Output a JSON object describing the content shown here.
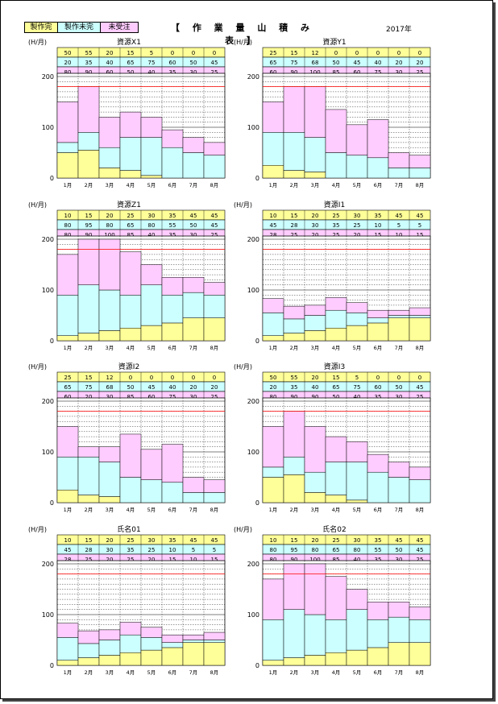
{
  "header": {
    "title": "【 作 業 量 山 積 み 表 】",
    "year": "2017年",
    "legend": [
      {
        "label": "製作完",
        "color": "#ffff99"
      },
      {
        "label": "製作未完",
        "color": "#ccffff"
      },
      {
        "label": "未受注",
        "color": "#ffccff"
      }
    ]
  },
  "colors": {
    "done": "#ffff99",
    "undone": "#ccffff",
    "unordered": "#ffccff",
    "limit": "#ff0000"
  },
  "chart_data": [
    {
      "type": "bar",
      "stacked": true,
      "title": "資源X1",
      "ylabel": "(H/月)",
      "ylim": [
        0,
        200
      ],
      "yticks": [
        0,
        100,
        200
      ],
      "limit_line": 180,
      "categories": [
        "1月",
        "2月",
        "3月",
        "4月",
        "5月",
        "6月",
        "7月",
        "8月"
      ],
      "series": [
        {
          "name": "製作完",
          "values": [
            50,
            55,
            20,
            15,
            5,
            0,
            0,
            0
          ]
        },
        {
          "name": "製作未完",
          "values": [
            20,
            35,
            40,
            65,
            75,
            60,
            50,
            45
          ]
        },
        {
          "name": "未受注",
          "values": [
            80,
            90,
            60,
            50,
            40,
            35,
            30,
            25
          ]
        }
      ]
    },
    {
      "type": "bar",
      "stacked": true,
      "title": "資源Y1",
      "ylabel": "(H/月)",
      "ylim": [
        0,
        200
      ],
      "yticks": [
        0,
        100,
        200
      ],
      "limit_line": 180,
      "categories": [
        "1月",
        "2月",
        "3月",
        "4月",
        "5月",
        "6月",
        "7月",
        "8月"
      ],
      "series": [
        {
          "name": "製作完",
          "values": [
            25,
            15,
            12,
            0,
            0,
            0,
            0,
            0
          ]
        },
        {
          "name": "製作未完",
          "values": [
            65,
            75,
            68,
            50,
            45,
            40,
            20,
            20
          ]
        },
        {
          "name": "未受注",
          "values": [
            60,
            90,
            100,
            85,
            60,
            75,
            30,
            25
          ]
        }
      ]
    },
    {
      "type": "bar",
      "stacked": true,
      "title": "資源Z1",
      "ylabel": "(H/月)",
      "ylim": [
        0,
        200
      ],
      "yticks": [
        0,
        100,
        200
      ],
      "limit_line": 180,
      "categories": [
        "1月",
        "2月",
        "3月",
        "4月",
        "5月",
        "6月",
        "7月",
        "8月"
      ],
      "series": [
        {
          "name": "製作完",
          "values": [
            10,
            15,
            20,
            25,
            30,
            35,
            45,
            45
          ]
        },
        {
          "name": "製作未完",
          "values": [
            80,
            95,
            80,
            65,
            80,
            55,
            50,
            45
          ]
        },
        {
          "name": "未受注",
          "values": [
            80,
            90,
            100,
            85,
            40,
            35,
            30,
            25
          ]
        }
      ]
    },
    {
      "type": "bar",
      "stacked": true,
      "title": "資源I1",
      "ylabel": "(H/月)",
      "ylim": [
        0,
        200
      ],
      "yticks": [
        0,
        100,
        200
      ],
      "limit_line": 180,
      "categories": [
        "1月",
        "2月",
        "3月",
        "4月",
        "5月",
        "6月",
        "7月",
        "8月"
      ],
      "series": [
        {
          "name": "製作完",
          "values": [
            10,
            15,
            20,
            25,
            30,
            35,
            45,
            45
          ]
        },
        {
          "name": "製作未完",
          "values": [
            45,
            28,
            30,
            35,
            25,
            10,
            5,
            5
          ]
        },
        {
          "name": "未受注",
          "values": [
            28,
            25,
            20,
            25,
            20,
            15,
            10,
            15
          ]
        }
      ]
    },
    {
      "type": "bar",
      "stacked": true,
      "title": "資源I2",
      "ylabel": "(H/月)",
      "ylim": [
        0,
        200
      ],
      "yticks": [
        0,
        100,
        200
      ],
      "limit_line": 180,
      "categories": [
        "1月",
        "2月",
        "3月",
        "4月",
        "5月",
        "6月",
        "7月",
        "8月"
      ],
      "series": [
        {
          "name": "製作完",
          "values": [
            25,
            15,
            12,
            0,
            0,
            0,
            0,
            0
          ]
        },
        {
          "name": "製作未完",
          "values": [
            65,
            75,
            68,
            50,
            45,
            40,
            20,
            20
          ]
        },
        {
          "name": "未受注",
          "values": [
            60,
            20,
            30,
            85,
            60,
            75,
            30,
            25
          ]
        }
      ]
    },
    {
      "type": "bar",
      "stacked": true,
      "title": "資源I3",
      "ylabel": "(H/月)",
      "ylim": [
        0,
        200
      ],
      "yticks": [
        0,
        100,
        200
      ],
      "limit_line": 180,
      "categories": [
        "1月",
        "2月",
        "3月",
        "4月",
        "5月",
        "6月",
        "7月",
        "8月"
      ],
      "series": [
        {
          "name": "製作完",
          "values": [
            50,
            55,
            20,
            15,
            5,
            0,
            0,
            0
          ]
        },
        {
          "name": "製作未完",
          "values": [
            20,
            35,
            40,
            65,
            75,
            60,
            50,
            45
          ]
        },
        {
          "name": "未受注",
          "values": [
            80,
            90,
            90,
            50,
            40,
            35,
            30,
            25
          ]
        }
      ]
    },
    {
      "type": "bar",
      "stacked": true,
      "title": "氏名01",
      "ylabel": "(H/月)",
      "ylim": [
        0,
        200
      ],
      "yticks": [
        0,
        100,
        200
      ],
      "limit_line": 180,
      "categories": [
        "1月",
        "2月",
        "3月",
        "4月",
        "5月",
        "6月",
        "7月",
        "8月"
      ],
      "series": [
        {
          "name": "製作完",
          "values": [
            10,
            15,
            20,
            25,
            30,
            35,
            45,
            45
          ]
        },
        {
          "name": "製作未完",
          "values": [
            45,
            28,
            30,
            35,
            25,
            10,
            5,
            5
          ]
        },
        {
          "name": "未受注",
          "values": [
            28,
            25,
            20,
            25,
            20,
            15,
            10,
            15
          ]
        }
      ]
    },
    {
      "type": "bar",
      "stacked": true,
      "title": "氏名02",
      "ylabel": "(H/月)",
      "ylim": [
        0,
        200
      ],
      "yticks": [
        0,
        100,
        200
      ],
      "limit_line": 180,
      "categories": [
        "1月",
        "2月",
        "3月",
        "4月",
        "5月",
        "6月",
        "7月",
        "8月"
      ],
      "series": [
        {
          "name": "製作完",
          "values": [
            10,
            15,
            20,
            25,
            30,
            35,
            45,
            45
          ]
        },
        {
          "name": "製作未完",
          "values": [
            80,
            95,
            80,
            65,
            80,
            55,
            50,
            45
          ]
        },
        {
          "name": "未受注",
          "values": [
            80,
            90,
            100,
            85,
            40,
            35,
            30,
            25
          ]
        }
      ]
    }
  ]
}
